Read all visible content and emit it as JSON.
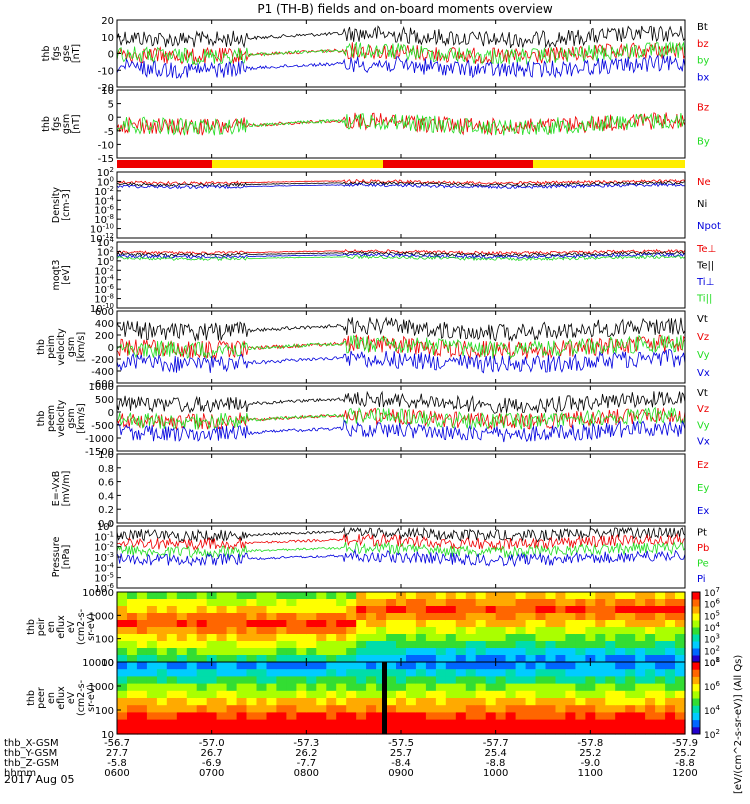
{
  "title": "P1 (TH-B) fields and on-board moments overview",
  "date_label": "2017 Aug 05",
  "colorbar_label": "[eV/(cm^2-s-sr-eV)] (All Qs)",
  "colors": {
    "black": "#000000",
    "red": "#ee0000",
    "green": "#22dd22",
    "blue": "#0000dd",
    "mode_red": "#ee0000",
    "mode_yellow": "#ffee00"
  },
  "chart_data": [
    {
      "type": "line",
      "id": "fgs_gse",
      "ylabel": [
        "thb",
        "fgs",
        "gse",
        "[nT]"
      ],
      "yticks": [
        "20",
        "10",
        "0",
        "-10",
        "-20"
      ],
      "ylim": [
        -20,
        20
      ],
      "legend": [
        {
          "name": "Bt",
          "color": "black"
        },
        {
          "name": "bz",
          "color": "red"
        },
        {
          "name": "by",
          "color": "green"
        },
        {
          "name": "bx",
          "color": "blue"
        }
      ]
    },
    {
      "type": "line",
      "id": "fgs_gsm",
      "ylabel": [
        "thb",
        "fgs",
        "gsm",
        "[nT]"
      ],
      "yticks": [
        "10",
        "5",
        "0",
        "-5",
        "-10",
        "-15"
      ],
      "ylim": [
        -18,
        12
      ],
      "legend": [
        {
          "name": "Bz",
          "color": "red"
        },
        {
          "name": "By",
          "color": "green"
        }
      ]
    },
    {
      "type": "line",
      "id": "density",
      "ylabel": [
        "Density",
        "[cm-3]"
      ],
      "yticks": [
        "10^2",
        "10^0",
        "10^-2",
        "10^-4",
        "10^-6",
        "10^-8",
        "10^-10",
        "10^-12"
      ],
      "scale": "log",
      "legend": [
        {
          "name": "Ne",
          "color": "red"
        },
        {
          "name": "Ni",
          "color": "black"
        },
        {
          "name": "Npot",
          "color": "blue"
        }
      ]
    },
    {
      "type": "line",
      "id": "temperature",
      "ylabel": [
        "moqt3",
        "[eV]"
      ],
      "yticks": [
        "10^4",
        "10^2",
        "10^0",
        "10^-2",
        "10^-4",
        "10^-6",
        "10^-8",
        "10^-10"
      ],
      "scale": "log",
      "legend": [
        {
          "name": "Te⊥",
          "color": "red"
        },
        {
          "name": "Te||",
          "color": "black"
        },
        {
          "name": "Ti⊥",
          "color": "blue"
        },
        {
          "name": "Ti||",
          "color": "green"
        }
      ]
    },
    {
      "type": "line",
      "id": "peim_velocity",
      "ylabel": [
        "thb",
        "peim",
        "velocity",
        "gsm",
        "[km/s]"
      ],
      "yticks": [
        "600",
        "400",
        "200",
        "0",
        "-200",
        "-400",
        "-600"
      ],
      "ylim": [
        -600,
        600
      ],
      "legend": [
        {
          "name": "Vt",
          "color": "black"
        },
        {
          "name": "Vz",
          "color": "red"
        },
        {
          "name": "Vy",
          "color": "green"
        },
        {
          "name": "Vx",
          "color": "blue"
        }
      ]
    },
    {
      "type": "line",
      "id": "peem_velocity",
      "ylabel": [
        "thb",
        "peem",
        "velocity",
        "gsm",
        "[km/s]"
      ],
      "yticks": [
        "1000",
        "500",
        "0",
        "-500",
        "-1000",
        "-1500"
      ],
      "ylim": [
        -1500,
        1500
      ],
      "legend": [
        {
          "name": "Vt",
          "color": "black"
        },
        {
          "name": "Vz",
          "color": "red"
        },
        {
          "name": "Vy",
          "color": "green"
        },
        {
          "name": "Vx",
          "color": "blue"
        }
      ]
    },
    {
      "type": "line",
      "id": "efield",
      "ylabel": [
        "E=-VxB",
        "[mV/m]"
      ],
      "yticks": [
        "1.0",
        "0.8",
        "0.6",
        "0.4",
        "0.2",
        "0.0"
      ],
      "ylim": [
        0,
        1
      ],
      "legend": [
        {
          "name": "Ez",
          "color": "red"
        },
        {
          "name": "Ey",
          "color": "green"
        },
        {
          "name": "Ex",
          "color": "blue"
        }
      ]
    },
    {
      "type": "line",
      "id": "pressure",
      "ylabel": [
        "Pressure",
        "[nPa]"
      ],
      "yticks": [
        "10^0",
        "10^-1",
        "10^-2",
        "10^-3",
        "10^-4",
        "10^-5",
        "10^-6"
      ],
      "scale": "log",
      "legend": [
        {
          "name": "Pt",
          "color": "black"
        },
        {
          "name": "Pb",
          "color": "red"
        },
        {
          "name": "Pe",
          "color": "green"
        },
        {
          "name": "Pi",
          "color": "blue"
        }
      ]
    },
    {
      "type": "heatmap",
      "id": "peir",
      "ylabel": [
        "thb",
        "peir",
        "en",
        "eflux",
        "eV",
        "(cm2-s-",
        "sr-eV)"
      ],
      "yticks": [
        "10000",
        "1000",
        "100",
        "10"
      ],
      "scale": "log",
      "colorbar_ticks": [
        "10^7",
        "10^6",
        "10^5",
        "10^4",
        "10^3",
        "10^2",
        "10^1"
      ]
    },
    {
      "type": "heatmap",
      "id": "peer",
      "ylabel": [
        "thb",
        "peer",
        "en",
        "eflux",
        "eV",
        "(cm2-s-",
        "sr-eV)"
      ],
      "yticks": [
        "10000",
        "1000",
        "100",
        "10"
      ],
      "scale": "log",
      "colorbar_ticks": [
        "10^8",
        "10^6",
        "10^4",
        "10^2"
      ]
    }
  ],
  "x_axis": {
    "rows": [
      {
        "label": "thb_X-GSM",
        "values": [
          "-56.7",
          "-57.0",
          "-57.3",
          "-57.5",
          "-57.7",
          "-57.8",
          "-57.9"
        ]
      },
      {
        "label": "thb_Y-GSM",
        "values": [
          "27.7",
          "26.7",
          "26.2",
          "25.7",
          "25.4",
          "25.2",
          "25.2"
        ]
      },
      {
        "label": "thb_Z-GSM",
        "values": [
          "-5.8",
          "-6.9",
          "-7.7",
          "-8.4",
          "-8.8",
          "-9.0",
          "-8.8"
        ]
      },
      {
        "label": "hhmm",
        "values": [
          "0600",
          "0700",
          "0800",
          "0900",
          "1000",
          "1100",
          "1200"
        ]
      }
    ]
  }
}
